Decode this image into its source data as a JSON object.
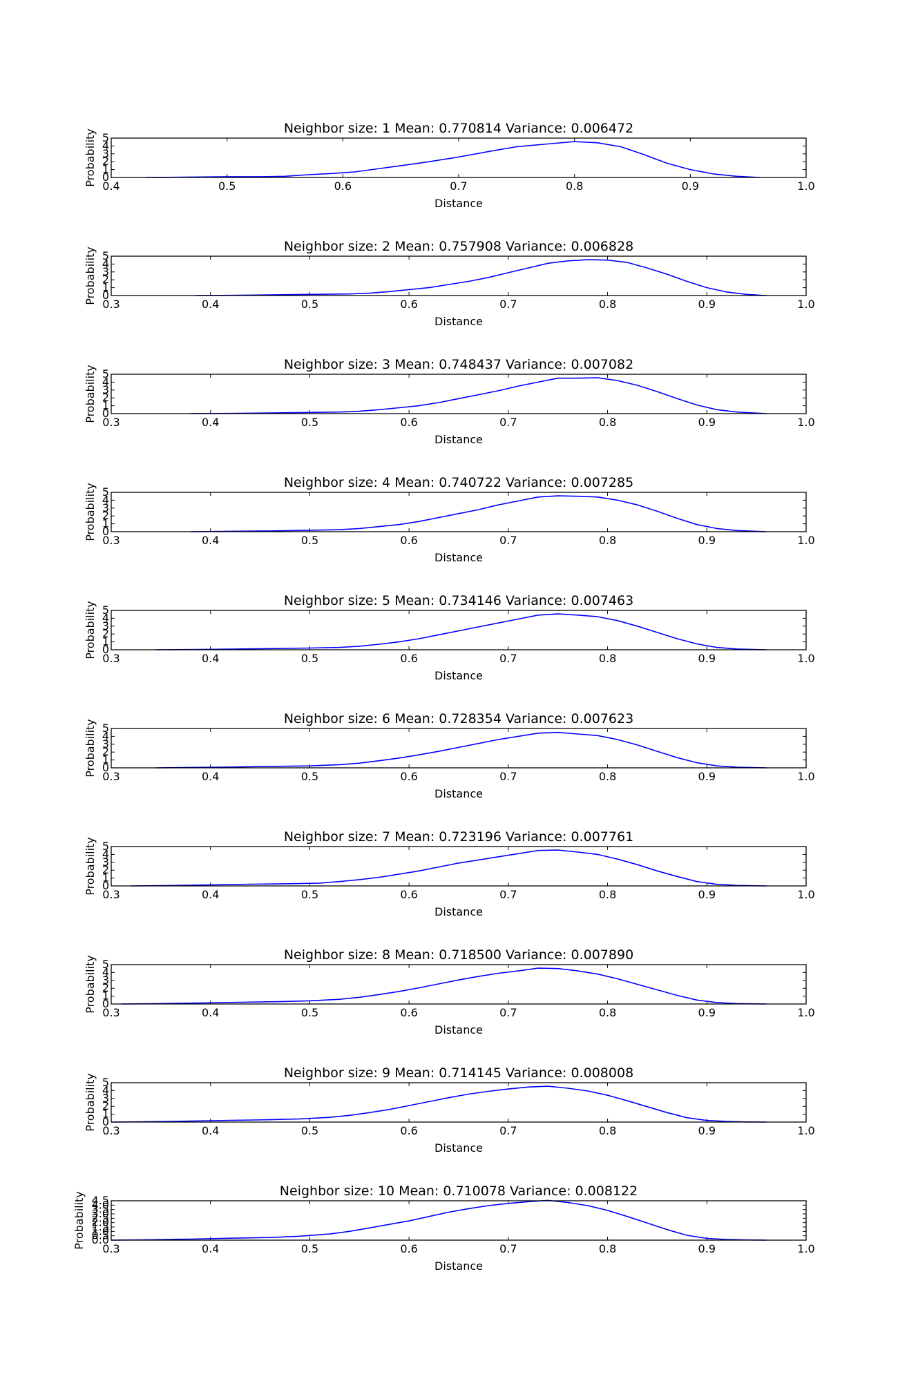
{
  "chart_data": [
    {
      "type": "line",
      "title": "Neighbor size: 1 Mean: 0.770814 Variance: 0.006472",
      "xlabel": "Distance",
      "ylabel": "Probability",
      "xlim": [
        0.4,
        1.0
      ],
      "ylim": [
        0,
        5
      ],
      "xticks": [
        "0.4",
        "0.5",
        "0.6",
        "0.7",
        "0.8",
        "0.9",
        "1.0"
      ],
      "yticks": [
        "0",
        "1",
        "2",
        "3",
        "4",
        "5"
      ],
      "series": [
        {
          "color": "#0000ff",
          "x": [
            0.43,
            0.45,
            0.47,
            0.5,
            0.53,
            0.55,
            0.57,
            0.59,
            0.61,
            0.63,
            0.65,
            0.67,
            0.7,
            0.73,
            0.75,
            0.78,
            0.8,
            0.82,
            0.84,
            0.86,
            0.88,
            0.9,
            0.92,
            0.94,
            0.96
          ],
          "y": [
            0.0,
            0.02,
            0.05,
            0.1,
            0.1,
            0.15,
            0.35,
            0.5,
            0.7,
            1.1,
            1.5,
            1.9,
            2.6,
            3.4,
            3.9,
            4.3,
            4.55,
            4.4,
            3.9,
            2.9,
            1.8,
            1.0,
            0.45,
            0.15,
            0.0
          ]
        }
      ]
    },
    {
      "type": "line",
      "title": "Neighbor size: 2 Mean: 0.757908 Variance: 0.006828",
      "xlabel": "Distance",
      "ylabel": "Probability",
      "xlim": [
        0.3,
        1.0
      ],
      "ylim": [
        0,
        5
      ],
      "xticks": [
        "0.3",
        "0.4",
        "0.5",
        "0.6",
        "0.7",
        "0.8",
        "0.9",
        "1.0"
      ],
      "yticks": [
        "0",
        "1",
        "2",
        "3",
        "4",
        "5"
      ],
      "series": [
        {
          "color": "#0000ff",
          "x": [
            0.385,
            0.42,
            0.46,
            0.5,
            0.54,
            0.56,
            0.58,
            0.6,
            0.62,
            0.64,
            0.66,
            0.68,
            0.7,
            0.72,
            0.74,
            0.76,
            0.78,
            0.8,
            0.82,
            0.84,
            0.86,
            0.88,
            0.9,
            0.92,
            0.94,
            0.96
          ],
          "y": [
            0.0,
            0.03,
            0.08,
            0.15,
            0.2,
            0.3,
            0.5,
            0.75,
            1.0,
            1.4,
            1.8,
            2.3,
            2.9,
            3.5,
            4.1,
            4.4,
            4.55,
            4.5,
            4.2,
            3.5,
            2.7,
            1.8,
            1.0,
            0.45,
            0.15,
            0.0
          ]
        }
      ]
    },
    {
      "type": "line",
      "title": "Neighbor size: 3 Mean: 0.748437 Variance: 0.007082",
      "xlabel": "Distance",
      "ylabel": "Probability",
      "xlim": [
        0.3,
        1.0
      ],
      "ylim": [
        0,
        5
      ],
      "xticks": [
        "0.3",
        "0.4",
        "0.5",
        "0.6",
        "0.7",
        "0.8",
        "0.9",
        "1.0"
      ],
      "yticks": [
        "0",
        "1",
        "2",
        "3",
        "4",
        "5"
      ],
      "series": [
        {
          "color": "#0000ff",
          "x": [
            0.38,
            0.42,
            0.46,
            0.5,
            0.53,
            0.55,
            0.57,
            0.59,
            0.61,
            0.63,
            0.65,
            0.67,
            0.69,
            0.71,
            0.73,
            0.75,
            0.77,
            0.79,
            0.81,
            0.83,
            0.85,
            0.87,
            0.89,
            0.91,
            0.93,
            0.96
          ],
          "y": [
            0.0,
            0.03,
            0.08,
            0.15,
            0.2,
            0.3,
            0.5,
            0.75,
            1.0,
            1.4,
            1.9,
            2.4,
            2.9,
            3.5,
            4.0,
            4.5,
            4.5,
            4.55,
            4.2,
            3.6,
            2.8,
            1.9,
            1.1,
            0.5,
            0.2,
            0.0
          ]
        }
      ]
    },
    {
      "type": "line",
      "title": "Neighbor size: 4 Mean: 0.740722 Variance: 0.007285",
      "xlabel": "Distance",
      "ylabel": "Probability",
      "xlim": [
        0.3,
        1.0
      ],
      "ylim": [
        0,
        5
      ],
      "xticks": [
        "0.3",
        "0.4",
        "0.5",
        "0.6",
        "0.7",
        "0.8",
        "0.9",
        "1.0"
      ],
      "yticks": [
        "0",
        "1",
        "2",
        "3",
        "4",
        "5"
      ],
      "series": [
        {
          "color": "#0000ff",
          "x": [
            0.38,
            0.42,
            0.46,
            0.5,
            0.53,
            0.55,
            0.57,
            0.59,
            0.61,
            0.63,
            0.65,
            0.67,
            0.69,
            0.71,
            0.73,
            0.75,
            0.77,
            0.79,
            0.81,
            0.83,
            0.85,
            0.87,
            0.89,
            0.91,
            0.93,
            0.96
          ],
          "y": [
            0.0,
            0.05,
            0.1,
            0.18,
            0.25,
            0.4,
            0.65,
            0.9,
            1.3,
            1.8,
            2.3,
            2.8,
            3.4,
            3.9,
            4.4,
            4.55,
            4.5,
            4.4,
            4.0,
            3.4,
            2.6,
            1.7,
            0.9,
            0.4,
            0.15,
            0.0
          ]
        }
      ]
    },
    {
      "type": "line",
      "title": "Neighbor size: 5 Mean: 0.734146 Variance: 0.007463",
      "xlabel": "Distance",
      "ylabel": "Probability",
      "xlim": [
        0.3,
        1.0
      ],
      "ylim": [
        0,
        5
      ],
      "xticks": [
        "0.3",
        "0.4",
        "0.5",
        "0.6",
        "0.7",
        "0.8",
        "0.9",
        "1.0"
      ],
      "yticks": [
        "0",
        "1",
        "2",
        "3",
        "4",
        "5"
      ],
      "series": [
        {
          "color": "#0000ff",
          "x": [
            0.345,
            0.38,
            0.42,
            0.46,
            0.5,
            0.53,
            0.55,
            0.57,
            0.59,
            0.61,
            0.63,
            0.65,
            0.67,
            0.69,
            0.71,
            0.73,
            0.75,
            0.77,
            0.79,
            0.81,
            0.83,
            0.85,
            0.87,
            0.89,
            0.91,
            0.93,
            0.96
          ],
          "y": [
            0.0,
            0.03,
            0.08,
            0.15,
            0.22,
            0.3,
            0.45,
            0.7,
            1.0,
            1.4,
            1.9,
            2.4,
            2.9,
            3.4,
            3.9,
            4.4,
            4.55,
            4.4,
            4.2,
            3.7,
            3.0,
            2.2,
            1.4,
            0.75,
            0.3,
            0.1,
            0.0
          ]
        }
      ]
    },
    {
      "type": "line",
      "title": "Neighbor size: 6 Mean: 0.728354 Variance: 0.007623",
      "xlabel": "Distance",
      "ylabel": "Probability",
      "xlim": [
        0.3,
        1.0
      ],
      "ylim": [
        0,
        5
      ],
      "xticks": [
        "0.3",
        "0.4",
        "0.5",
        "0.6",
        "0.7",
        "0.8",
        "0.9",
        "1.0"
      ],
      "yticks": [
        "0",
        "1",
        "2",
        "3",
        "4",
        "5"
      ],
      "series": [
        {
          "color": "#0000ff",
          "x": [
            0.345,
            0.38,
            0.42,
            0.46,
            0.5,
            0.53,
            0.55,
            0.57,
            0.59,
            0.61,
            0.63,
            0.65,
            0.67,
            0.69,
            0.71,
            0.73,
            0.75,
            0.77,
            0.79,
            0.81,
            0.83,
            0.85,
            0.87,
            0.89,
            0.91,
            0.93,
            0.96
          ],
          "y": [
            0.0,
            0.05,
            0.1,
            0.18,
            0.25,
            0.4,
            0.6,
            0.9,
            1.25,
            1.65,
            2.1,
            2.6,
            3.1,
            3.6,
            4.0,
            4.4,
            4.5,
            4.3,
            4.1,
            3.6,
            2.9,
            2.1,
            1.3,
            0.65,
            0.25,
            0.08,
            0.0
          ]
        }
      ]
    },
    {
      "type": "line",
      "title": "Neighbor size: 7 Mean: 0.723196 Variance: 0.007761",
      "xlabel": "Distance",
      "ylabel": "Probability",
      "xlim": [
        0.3,
        1.0
      ],
      "ylim": [
        0,
        5
      ],
      "xticks": [
        "0.3",
        "0.4",
        "0.5",
        "0.6",
        "0.7",
        "0.8",
        "0.9",
        "1.0"
      ],
      "yticks": [
        "0",
        "1",
        "2",
        "3",
        "4",
        "5"
      ],
      "series": [
        {
          "color": "#0000ff",
          "x": [
            0.32,
            0.36,
            0.4,
            0.44,
            0.48,
            0.51,
            0.53,
            0.55,
            0.57,
            0.59,
            0.61,
            0.63,
            0.65,
            0.67,
            0.69,
            0.71,
            0.73,
            0.75,
            0.77,
            0.79,
            0.81,
            0.83,
            0.85,
            0.87,
            0.89,
            0.91,
            0.93,
            0.96
          ],
          "y": [
            0.0,
            0.05,
            0.12,
            0.22,
            0.28,
            0.35,
            0.55,
            0.8,
            1.1,
            1.5,
            1.9,
            2.4,
            2.9,
            3.3,
            3.7,
            4.1,
            4.5,
            4.55,
            4.3,
            4.0,
            3.4,
            2.7,
            1.9,
            1.2,
            0.55,
            0.2,
            0.06,
            0.0
          ]
        }
      ]
    },
    {
      "type": "line",
      "title": "Neighbor size: 8 Mean: 0.718500 Variance: 0.007890",
      "xlabel": "Distance",
      "ylabel": "Probability",
      "xlim": [
        0.3,
        1.0
      ],
      "ylim": [
        0,
        5
      ],
      "xticks": [
        "0.3",
        "0.4",
        "0.5",
        "0.6",
        "0.7",
        "0.8",
        "0.9",
        "1.0"
      ],
      "yticks": [
        "0",
        "1",
        "2",
        "3",
        "4",
        "5"
      ],
      "series": [
        {
          "color": "#0000ff",
          "x": [
            0.31,
            0.35,
            0.39,
            0.43,
            0.47,
            0.5,
            0.53,
            0.55,
            0.57,
            0.59,
            0.61,
            0.63,
            0.65,
            0.67,
            0.69,
            0.71,
            0.73,
            0.75,
            0.77,
            0.79,
            0.81,
            0.83,
            0.85,
            0.87,
            0.89,
            0.91,
            0.93,
            0.96
          ],
          "y": [
            0.0,
            0.05,
            0.12,
            0.22,
            0.3,
            0.4,
            0.6,
            0.85,
            1.2,
            1.6,
            2.05,
            2.55,
            3.05,
            3.5,
            3.9,
            4.2,
            4.55,
            4.5,
            4.2,
            3.8,
            3.2,
            2.5,
            1.8,
            1.1,
            0.5,
            0.18,
            0.05,
            0.0
          ]
        }
      ]
    },
    {
      "type": "line",
      "title": "Neighbor size: 9 Mean: 0.714145 Variance: 0.008008",
      "xlabel": "Distance",
      "ylabel": "Probability",
      "xlim": [
        0.3,
        1.0
      ],
      "ylim": [
        0,
        5
      ],
      "xticks": [
        "0.3",
        "0.4",
        "0.5",
        "0.6",
        "0.7",
        "0.8",
        "0.9",
        "1.0"
      ],
      "yticks": [
        "0",
        "1",
        "2",
        "3",
        "4",
        "5"
      ],
      "series": [
        {
          "color": "#0000ff",
          "x": [
            0.3,
            0.34,
            0.38,
            0.42,
            0.46,
            0.49,
            0.52,
            0.54,
            0.56,
            0.58,
            0.6,
            0.62,
            0.64,
            0.66,
            0.68,
            0.7,
            0.72,
            0.74,
            0.76,
            0.78,
            0.8,
            0.82,
            0.84,
            0.86,
            0.88,
            0.9,
            0.92,
            0.94,
            0.96
          ],
          "y": [
            0.0,
            0.05,
            0.12,
            0.22,
            0.3,
            0.4,
            0.6,
            0.85,
            1.2,
            1.6,
            2.1,
            2.6,
            3.1,
            3.55,
            3.9,
            4.2,
            4.45,
            4.55,
            4.3,
            3.95,
            3.4,
            2.7,
            1.95,
            1.2,
            0.55,
            0.2,
            0.08,
            0.02,
            0.0
          ]
        }
      ]
    },
    {
      "type": "line",
      "title": "Neighbor size: 10 Mean: 0.710078 Variance: 0.008122",
      "xlabel": "Distance",
      "ylabel": "Probability",
      "xlim": [
        0.3,
        1.0
      ],
      "ylim": [
        0,
        4.5
      ],
      "xticks": [
        "0.3",
        "0.4",
        "0.5",
        "0.6",
        "0.7",
        "0.8",
        "0.9",
        "1.0"
      ],
      "yticks": [
        "0.0",
        "0.5",
        "1.0",
        "1.5",
        "2.0",
        "2.5",
        "3.0",
        "3.5",
        "4.0",
        "4.5"
      ],
      "series": [
        {
          "color": "#0000ff",
          "x": [
            0.3,
            0.34,
            0.38,
            0.42,
            0.46,
            0.49,
            0.52,
            0.54,
            0.56,
            0.58,
            0.6,
            0.62,
            0.64,
            0.66,
            0.68,
            0.7,
            0.72,
            0.74,
            0.76,
            0.78,
            0.8,
            0.82,
            0.84,
            0.86,
            0.88,
            0.9,
            0.92,
            0.94,
            0.96
          ],
          "y": [
            0.0,
            0.05,
            0.12,
            0.22,
            0.3,
            0.45,
            0.7,
            1.0,
            1.4,
            1.8,
            2.2,
            2.7,
            3.2,
            3.6,
            3.95,
            4.2,
            4.4,
            4.55,
            4.3,
            3.95,
            3.4,
            2.7,
            1.95,
            1.2,
            0.55,
            0.2,
            0.08,
            0.02,
            0.0
          ]
        }
      ]
    }
  ]
}
